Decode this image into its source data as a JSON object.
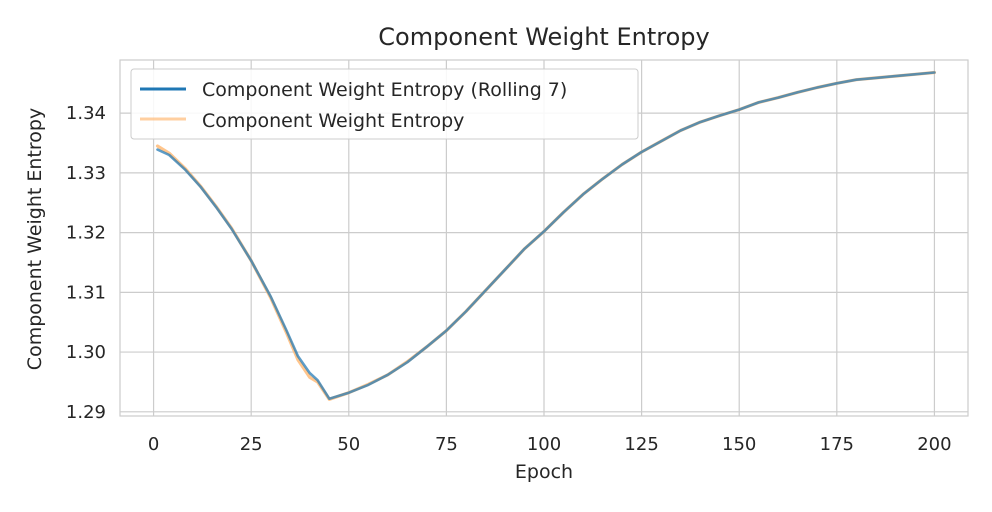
{
  "chart_data": {
    "type": "line",
    "title": "Component Weight Entropy",
    "xlabel": "Epoch",
    "ylabel": "Component Weight Entropy",
    "xlim": [
      -8.6,
      208.6
    ],
    "ylim": [
      1.2893,
      1.3489
    ],
    "xticks": [
      0,
      25,
      50,
      75,
      100,
      125,
      150,
      175,
      200
    ],
    "yticks": [
      1.29,
      1.3,
      1.31,
      1.32,
      1.33,
      1.34
    ],
    "ytick_labels": [
      "1.29",
      "1.30",
      "1.31",
      "1.32",
      "1.33",
      "1.34"
    ],
    "grid": true,
    "legend_position": "top-left",
    "x": [
      1,
      4,
      8,
      12,
      16,
      20,
      25,
      30,
      34,
      37,
      40,
      42,
      45,
      50,
      55,
      60,
      65,
      70,
      75,
      80,
      85,
      90,
      95,
      100,
      105,
      110,
      115,
      120,
      125,
      130,
      135,
      140,
      145,
      150,
      155,
      160,
      165,
      170,
      175,
      180,
      185,
      190,
      195,
      200
    ],
    "series": [
      {
        "name": "Component Weight Entropy (Rolling 7)",
        "color": "#1f77b4",
        "values": [
          1.3339,
          1.333,
          1.3306,
          1.3277,
          1.3243,
          1.3206,
          1.3153,
          1.3093,
          1.3037,
          1.2993,
          1.2965,
          1.2953,
          1.2922,
          1.2932,
          1.2945,
          1.2962,
          1.2983,
          1.3009,
          1.3036,
          1.3068,
          1.3103,
          1.3138,
          1.3173,
          1.3202,
          1.3234,
          1.3264,
          1.329,
          1.3314,
          1.3335,
          1.3353,
          1.3371,
          1.3385,
          1.3396,
          1.3406,
          1.3418,
          1.3426,
          1.3435,
          1.3443,
          1.345,
          1.3456,
          1.3459,
          1.3462,
          1.3465,
          1.3468
        ]
      },
      {
        "name": "Component Weight Entropy",
        "color": "#ffbb78",
        "values": [
          1.3345,
          1.3333,
          1.3308,
          1.3278,
          1.3244,
          1.3207,
          1.3153,
          1.3091,
          1.3033,
          1.2987,
          1.2958,
          1.295,
          1.2921,
          1.2932,
          1.2946,
          1.2962,
          1.2984,
          1.3009,
          1.3036,
          1.3068,
          1.3103,
          1.3138,
          1.3173,
          1.3202,
          1.3234,
          1.3264,
          1.329,
          1.3314,
          1.3335,
          1.3353,
          1.3371,
          1.3385,
          1.3396,
          1.3406,
          1.3418,
          1.3426,
          1.3435,
          1.3443,
          1.345,
          1.3456,
          1.3459,
          1.3462,
          1.3465,
          1.3468
        ]
      }
    ]
  }
}
